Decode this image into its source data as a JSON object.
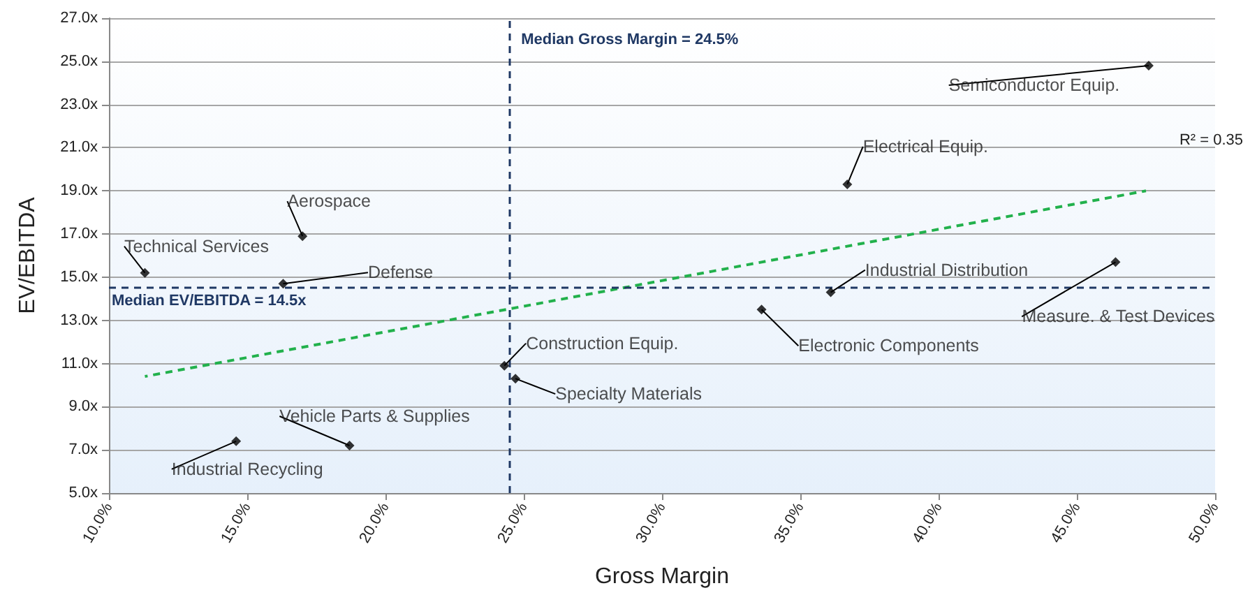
{
  "chart_data": {
    "type": "scatter",
    "xlabel": "Gross Margin",
    "ylabel": "EV/EBITDA",
    "xlim": [
      10,
      50
    ],
    "xticks": [
      {
        "value": 10,
        "label": "10.0%"
      },
      {
        "value": 15,
        "label": "15.0%"
      },
      {
        "value": 20,
        "label": "20.0%"
      },
      {
        "value": 25,
        "label": "25.0%"
      },
      {
        "value": 30,
        "label": "30.0%"
      },
      {
        "value": 35,
        "label": "35.0%"
      },
      {
        "value": 40,
        "label": "40.0%"
      },
      {
        "value": 45,
        "label": "45.0%"
      },
      {
        "value": 50,
        "label": "50.0%"
      }
    ],
    "ylim": [
      5,
      27
    ],
    "yticks": [
      {
        "value": 5,
        "label": "5.0x"
      },
      {
        "value": 7,
        "label": "7.0x"
      },
      {
        "value": 9,
        "label": "9.0x"
      },
      {
        "value": 11,
        "label": "11.0x"
      },
      {
        "value": 13,
        "label": "13.0x"
      },
      {
        "value": 15,
        "label": "15.0x"
      },
      {
        "value": 17,
        "label": "17.0x"
      },
      {
        "value": 19,
        "label": "19.0x"
      },
      {
        "value": 21,
        "label": "21.0x"
      },
      {
        "value": 23,
        "label": "23.0x"
      },
      {
        "value": 25,
        "label": "25.0x"
      },
      {
        "value": 27,
        "label": "27.0x"
      }
    ],
    "grid": "y",
    "series": [
      {
        "color": "#000000",
        "marker": "diamond",
        "x": [
          11.3,
          17.0,
          16.3,
          14.6,
          18.7,
          24.3,
          24.7,
          47.6,
          36.7,
          36.1,
          33.6,
          46.4
        ],
        "values": [
          15.2,
          16.9,
          14.7,
          7.4,
          7.2,
          10.9,
          10.3,
          24.8,
          19.3,
          14.3,
          13.5,
          15.7
        ]
      },
      {
        "type": "line",
        "color": "#22b14c",
        "marker": "none",
        "line_style": "dashed",
        "x": [
          11.3,
          47.5
        ],
        "values": [
          10.4,
          19.0
        ]
      }
    ],
    "ref_lines": [
      {
        "axis": "x",
        "value": 24.5,
        "label": "Median Gross Margin = 24.5%",
        "color": "#1f3864",
        "line_style": "dashed"
      },
      {
        "axis": "y",
        "value": 14.5,
        "label": "Median EV/EBITDA = 14.5x",
        "color": "#1f3864",
        "line_style": "dashed"
      }
    ],
    "annotations": [
      {
        "text": "Technical Services",
        "x": 11.3,
        "y": 15.2
      },
      {
        "text": "Aerospace",
        "x": 17.0,
        "y": 16.9
      },
      {
        "text": "Defense",
        "x": 16.3,
        "y": 14.7
      },
      {
        "text": "Industrial Recycling",
        "x": 14.6,
        "y": 7.4
      },
      {
        "text": "Vehicle Parts & Supplies",
        "x": 18.7,
        "y": 7.2
      },
      {
        "text": "Construction Equip.",
        "x": 24.3,
        "y": 10.9
      },
      {
        "text": "Specialty Materials",
        "x": 24.7,
        "y": 10.3
      },
      {
        "text": "Semiconductor Equip.",
        "x": 47.6,
        "y": 24.8
      },
      {
        "text": "Electrical Equip.",
        "x": 36.7,
        "y": 19.3
      },
      {
        "text": "Industrial Distribution",
        "x": 36.1,
        "y": 14.3
      },
      {
        "text": "Electronic Components",
        "x": 33.6,
        "y": 13.5
      },
      {
        "text": "Measure. & Test Devices",
        "x": 46.4,
        "y": 15.7
      },
      "R² = 0.35"
    ]
  }
}
